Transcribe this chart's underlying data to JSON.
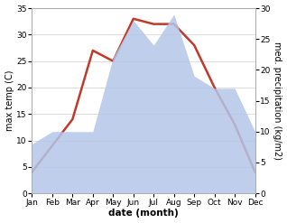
{
  "months": [
    "Jan",
    "Feb",
    "Mar",
    "Apr",
    "May",
    "Jun",
    "Jul",
    "Aug",
    "Sep",
    "Oct",
    "Nov",
    "Dec"
  ],
  "temperature": [
    4,
    9,
    14,
    27,
    25,
    33,
    32,
    32,
    28,
    20,
    13,
    4
  ],
  "precipitation": [
    8,
    10,
    10,
    10,
    22,
    28,
    24,
    29,
    19,
    17,
    17,
    10
  ],
  "temp_ylim": [
    0,
    35
  ],
  "precip_ylim": [
    0,
    30
  ],
  "temp_color": "#c0392b",
  "precip_fill_color": "#b3c6e8",
  "precip_fill_alpha": 0.85,
  "xlabel": "date (month)",
  "ylabel_left": "max temp (C)",
  "ylabel_right": "med. precipitation (kg/m2)",
  "bg_color": "#ffffff",
  "grid_color": "#d0d0d0",
  "label_fontsize": 7,
  "tick_fontsize": 6.5,
  "linewidth": 1.8
}
